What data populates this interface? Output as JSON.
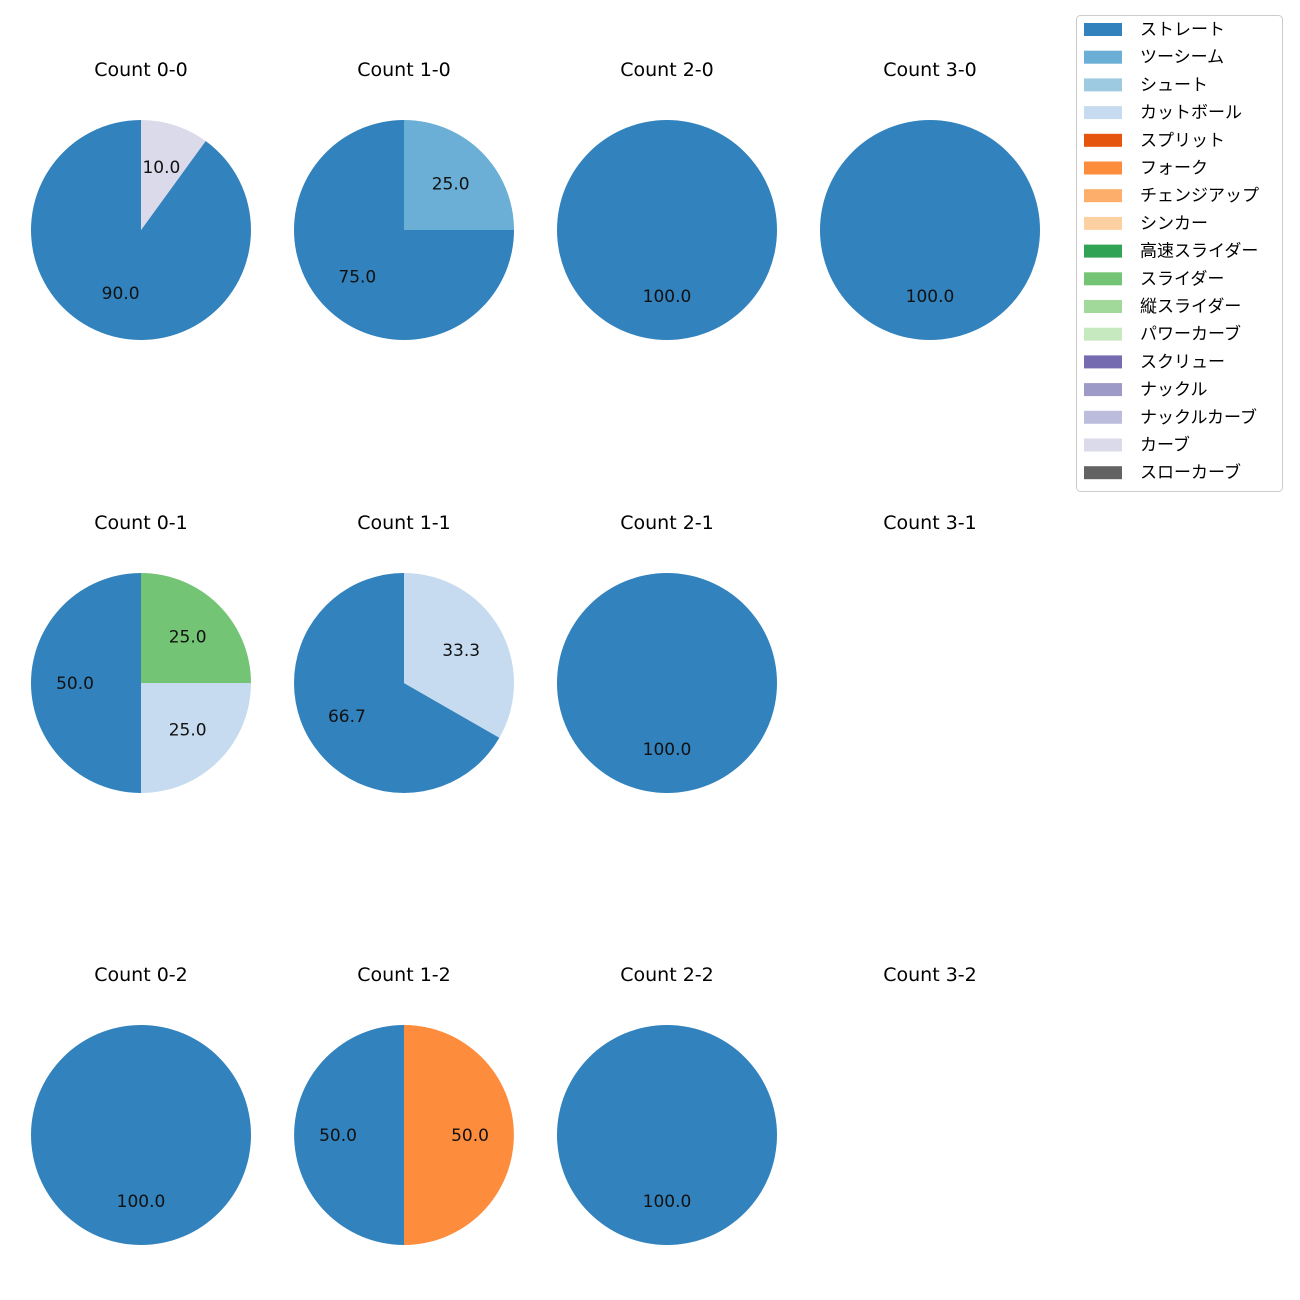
{
  "chart_data": {
    "type": "pie",
    "value_unit": "percent",
    "legend_position": "top-right",
    "pitch_types": [
      {
        "name": "ストレート",
        "color": "#3182bd"
      },
      {
        "name": "ツーシーム",
        "color": "#6baed6"
      },
      {
        "name": "シュート",
        "color": "#9ecae1"
      },
      {
        "name": "カットボール",
        "color": "#c6dbef"
      },
      {
        "name": "スプリット",
        "color": "#e6550d"
      },
      {
        "name": "フォーク",
        "color": "#fd8d3c"
      },
      {
        "name": "チェンジアップ",
        "color": "#fdae6b"
      },
      {
        "name": "シンカー",
        "color": "#fdd0a2"
      },
      {
        "name": "高速スライダー",
        "color": "#31a354"
      },
      {
        "name": "スライダー",
        "color": "#74c476"
      },
      {
        "name": "縦スライダー",
        "color": "#a1d99b"
      },
      {
        "name": "パワーカーブ",
        "color": "#c7e9c0"
      },
      {
        "name": "スクリュー",
        "color": "#756bb1"
      },
      {
        "name": "ナックル",
        "color": "#9e9ac8"
      },
      {
        "name": "ナックルカーブ",
        "color": "#bcbddc"
      },
      {
        "name": "カーブ",
        "color": "#dadaeb"
      },
      {
        "name": "スローカーブ",
        "color": "#636363"
      }
    ],
    "counts": [
      {
        "title": "Count 0-0",
        "slices": [
          {
            "pitch": "ストレート",
            "value": 90.0,
            "label": "90.0"
          },
          {
            "pitch": "カーブ",
            "value": 10.0,
            "label": "10.0"
          }
        ]
      },
      {
        "title": "Count 1-0",
        "slices": [
          {
            "pitch": "ストレート",
            "value": 75.0,
            "label": "75.0"
          },
          {
            "pitch": "ツーシーム",
            "value": 25.0,
            "label": "25.0"
          }
        ]
      },
      {
        "title": "Count 2-0",
        "slices": [
          {
            "pitch": "ストレート",
            "value": 100.0,
            "label": "100.0"
          }
        ]
      },
      {
        "title": "Count 3-0",
        "slices": [
          {
            "pitch": "ストレート",
            "value": 100.0,
            "label": "100.0"
          }
        ]
      },
      {
        "title": "Count 0-1",
        "slices": [
          {
            "pitch": "ストレート",
            "value": 50.0,
            "label": "50.0"
          },
          {
            "pitch": "カットボール",
            "value": 25.0,
            "label": "25.0"
          },
          {
            "pitch": "スライダー",
            "value": 25.0,
            "label": "25.0"
          }
        ]
      },
      {
        "title": "Count 1-1",
        "slices": [
          {
            "pitch": "ストレート",
            "value": 66.7,
            "label": "66.7"
          },
          {
            "pitch": "カットボール",
            "value": 33.3,
            "label": "33.3"
          }
        ]
      },
      {
        "title": "Count 2-1",
        "slices": [
          {
            "pitch": "ストレート",
            "value": 100.0,
            "label": "100.0"
          }
        ]
      },
      {
        "title": "Count 3-1",
        "slices": []
      },
      {
        "title": "Count 0-2",
        "slices": [
          {
            "pitch": "ストレート",
            "value": 100.0,
            "label": "100.0"
          }
        ]
      },
      {
        "title": "Count 1-2",
        "slices": [
          {
            "pitch": "ストレート",
            "value": 50.0,
            "label": "50.0"
          },
          {
            "pitch": "フォーク",
            "value": 50.0,
            "label": "50.0"
          }
        ]
      },
      {
        "title": "Count 2-2",
        "slices": [
          {
            "pitch": "ストレート",
            "value": 100.0,
            "label": "100.0"
          }
        ]
      },
      {
        "title": "Count 3-2",
        "slices": []
      }
    ]
  }
}
